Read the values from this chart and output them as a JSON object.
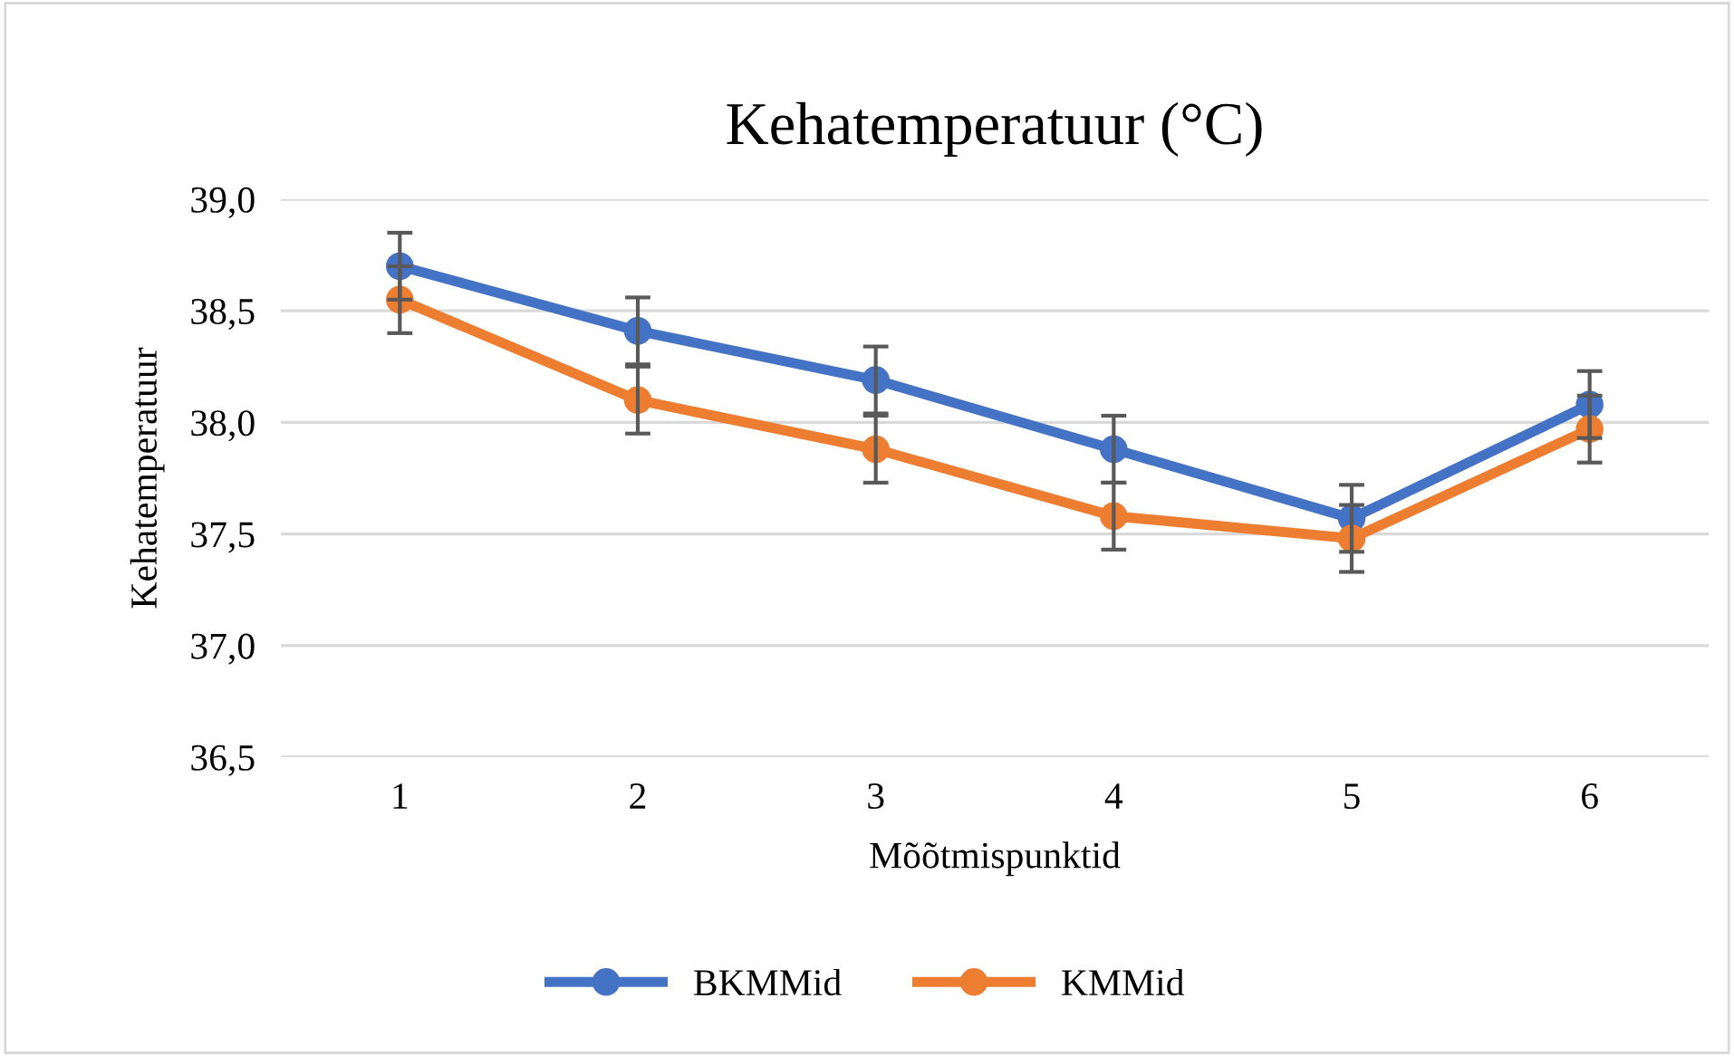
{
  "chart_data": {
    "type": "line",
    "title": "Kehatemperatuur (°C)",
    "xlabel": "Mõõtmispunktid",
    "ylabel": "Kehatemperatuur",
    "categories": [
      "1",
      "2",
      "3",
      "4",
      "5",
      "6"
    ],
    "series": [
      {
        "name": "BKMMid",
        "color": "#4472c4",
        "values": [
          38.7,
          38.41,
          38.19,
          37.88,
          37.57,
          38.08
        ],
        "errors": [
          0.15,
          0.15,
          0.15,
          0.15,
          0.15,
          0.15
        ]
      },
      {
        "name": "KMMid",
        "color": "#ed7d31",
        "values": [
          38.55,
          38.1,
          37.88,
          37.58,
          37.48,
          37.97
        ],
        "errors": [
          0.15,
          0.15,
          0.15,
          0.15,
          0.15,
          0.15
        ]
      }
    ],
    "ylim": [
      36.5,
      39.0
    ],
    "yticks": [
      {
        "value": 36.5,
        "label": "36,5"
      },
      {
        "value": 37.0,
        "label": "37,0"
      },
      {
        "value": 37.5,
        "label": "37,5"
      },
      {
        "value": 38.0,
        "label": "38,0"
      },
      {
        "value": 38.5,
        "label": "38,5"
      },
      {
        "value": 39.0,
        "label": "39,0"
      }
    ],
    "grid": "y",
    "legend": "bottom",
    "marker": "circle",
    "line_style": "solid"
  }
}
